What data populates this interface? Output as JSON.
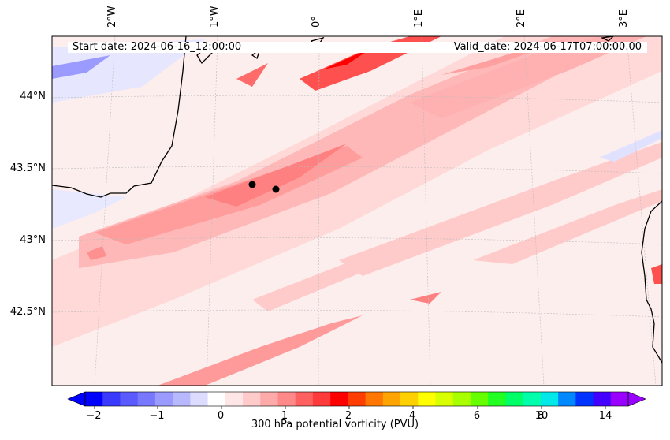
{
  "map": {
    "start_date": "Start date: 2024-06-16_12:00:00",
    "valid_date": "Valid_date: 2024-06-17T07:00:00.00",
    "lon_labels": [
      "2°W",
      "1°W",
      "0°",
      "1°E",
      "2°E",
      "3°E"
    ],
    "lat_labels": [
      "44°N",
      "43.5°N",
      "43°N",
      "42.5°N"
    ],
    "markers": [
      {
        "lon": -0.65,
        "lat": 43.39
      },
      {
        "lon": -0.43,
        "lat": 43.36
      }
    ]
  },
  "colorbar": {
    "label": "300 hPa potential vorticity (PVU)",
    "ticks": [
      "−2",
      "−1",
      "0",
      "1",
      "2",
      "4",
      "6",
      "8",
      "10",
      "14"
    ],
    "colors": [
      "#0000ff",
      "#3a3aff",
      "#5a5aff",
      "#7878ff",
      "#9a9aff",
      "#b8b8ff",
      "#dcdcff",
      "#ffffff",
      "#ffe6e6",
      "#ffcaca",
      "#ffaaaa",
      "#ff8888",
      "#ff6060",
      "#ff3a3a",
      "#ff0000",
      "#ff3d00",
      "#ff7700",
      "#ffa400",
      "#ffd000",
      "#ffff00",
      "#d8ff00",
      "#a8ff00",
      "#66ff00",
      "#22ff22",
      "#00ff66",
      "#00ffaa",
      "#00e8e8",
      "#0088ff",
      "#0033ff",
      "#4400ff",
      "#9900ff"
    ]
  },
  "colors": {
    "background": "#fdecec",
    "band_light": "#ffcaca",
    "band_mid": "#ffaaaa",
    "band_strong": "#ff8080",
    "band_core": "#ff5050",
    "blue_light": "#dcdcff",
    "blue_mid": "#9a9aff",
    "coast": "#000000"
  }
}
